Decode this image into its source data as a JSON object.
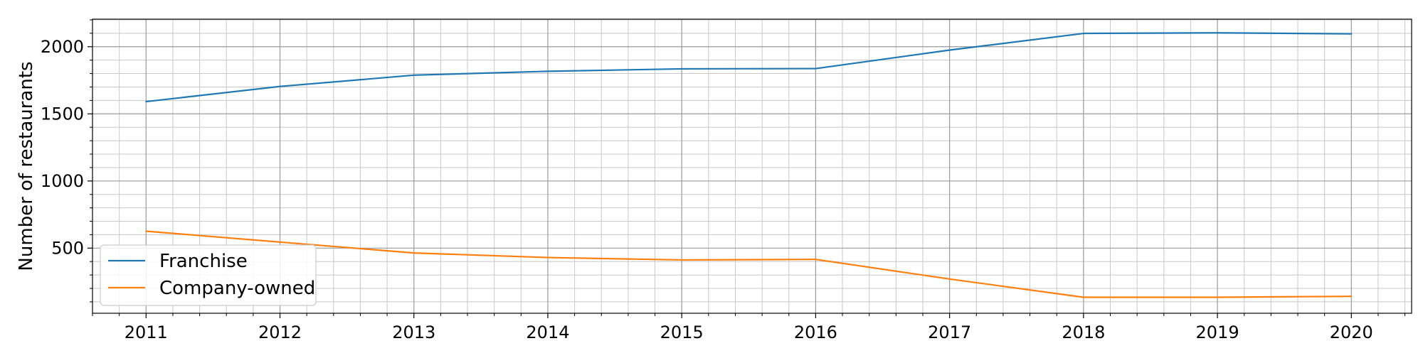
{
  "chart_data": {
    "type": "line",
    "title": "",
    "xlabel": "",
    "ylabel": "Number of restaurants",
    "x": [
      2011,
      2012,
      2013,
      2014,
      2015,
      2016,
      2017,
      2018,
      2019,
      2020
    ],
    "series": [
      {
        "name": "Franchise",
        "color": "#1f77b4",
        "values": [
          1591,
          1704,
          1788,
          1817,
          1835,
          1837,
          1975,
          2099,
          2103,
          2096
        ]
      },
      {
        "name": "Company-owned",
        "color": "#ff7f0e",
        "values": [
          626,
          545,
          464,
          430,
          412,
          416,
          270,
          134,
          134,
          141
        ]
      }
    ],
    "xlim": [
      2010.6,
      2020.45
    ],
    "ylim": [
      15,
      2205
    ],
    "xticks": [
      2011,
      2012,
      2013,
      2014,
      2015,
      2016,
      2017,
      2018,
      2019,
      2020
    ],
    "yticks": [
      500,
      1000,
      1500,
      2000
    ],
    "grid": "major and minor",
    "legend_position": "lower-left"
  }
}
